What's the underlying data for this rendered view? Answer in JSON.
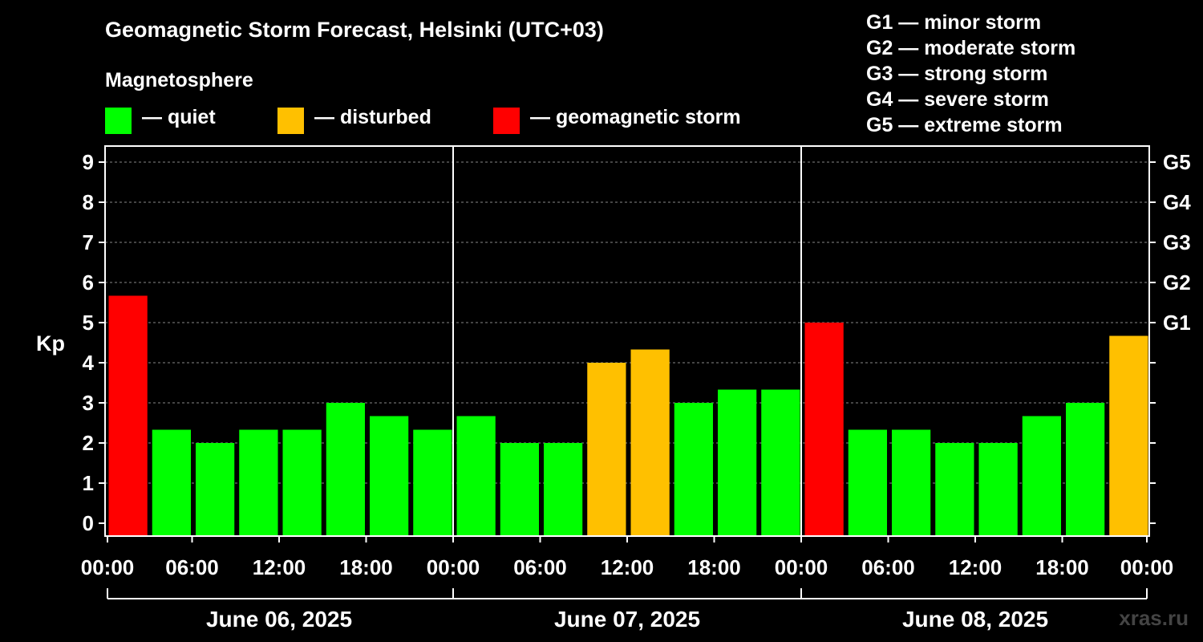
{
  "title": "Geomagnetic Storm Forecast, Helsinki (UTC+03)",
  "legend": {
    "heading": "Magnetosphere",
    "items": [
      {
        "label": "— quiet",
        "color": "#00ff00"
      },
      {
        "label": "— disturbed",
        "color": "#ffc000"
      },
      {
        "label": "— geomagnetic storm",
        "color": "#ff0000"
      }
    ]
  },
  "g_scale": [
    {
      "text": "G1 — minor storm"
    },
    {
      "text": "G2 — moderate storm"
    },
    {
      "text": "G3 — strong storm"
    },
    {
      "text": "G4 — severe storm"
    },
    {
      "text": "G5 — extreme storm"
    }
  ],
  "watermark": "xras.ru",
  "chart_data": {
    "type": "bar",
    "ylabel": "Kp",
    "ylim": [
      0,
      9
    ],
    "yticks": [
      "0",
      "1",
      "2",
      "3",
      "4",
      "5",
      "6",
      "7",
      "8",
      "9"
    ],
    "right_axis_labels": [
      {
        "kp": 5,
        "label": "G1"
      },
      {
        "kp": 6,
        "label": "G2"
      },
      {
        "kp": 7,
        "label": "G3"
      },
      {
        "kp": 8,
        "label": "G4"
      },
      {
        "kp": 9,
        "label": "G5"
      }
    ],
    "days": [
      {
        "label": "June 06, 2025",
        "values": [
          5.67,
          2.33,
          2.0,
          2.33,
          2.33,
          3.0,
          2.67,
          2.33
        ]
      },
      {
        "label": "June 07, 2025",
        "values": [
          2.67,
          2.0,
          2.0,
          4.0,
          4.33,
          3.0,
          3.33,
          3.33
        ]
      },
      {
        "label": "June 08, 2025",
        "values": [
          5.0,
          2.33,
          2.33,
          2.0,
          2.0,
          2.67,
          3.0,
          4.67
        ]
      }
    ],
    "x_tick_labels": [
      "00:00",
      "06:00",
      "12:00",
      "18:00",
      "00:00",
      "06:00",
      "12:00",
      "18:00",
      "00:00",
      "06:00",
      "12:00",
      "18:00",
      "00:00"
    ],
    "thresholds": {
      "disturbed": 4,
      "storm": 5
    },
    "colors": {
      "quiet": "#00ff00",
      "disturbed": "#ffc000",
      "storm": "#ff0000",
      "grid": "#888888",
      "axis": "#ffffff"
    }
  }
}
